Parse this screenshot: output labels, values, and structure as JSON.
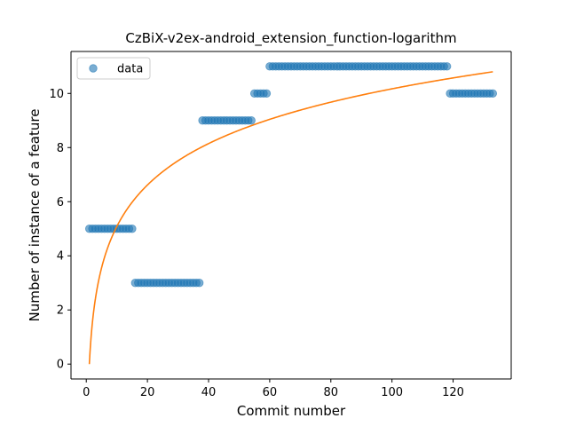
{
  "chart_data": {
    "type": "scatter",
    "title": "CzBiX-v2ex-android_extension_function-logarithm",
    "xlabel": "Commit number",
    "ylabel": "Number of instance of a feature",
    "xlim": [
      -5,
      139
    ],
    "ylim": [
      -0.55,
      11.55
    ],
    "xticks": [
      0,
      20,
      40,
      60,
      80,
      100,
      120
    ],
    "yticks": [
      0,
      2,
      4,
      6,
      8,
      10
    ],
    "grid": false,
    "legend_position": "top-left",
    "series": [
      {
        "name": "data",
        "kind": "points",
        "color": "#1f77b4",
        "segments": [
          {
            "x_from": 1,
            "x_to": 15,
            "y": 5
          },
          {
            "x_from": 16,
            "x_to": 37,
            "y": 3
          },
          {
            "x_from": 38,
            "x_to": 54,
            "y": 9
          },
          {
            "x_from": 55,
            "x_to": 59,
            "y": 10
          },
          {
            "x_from": 60,
            "x_to": 118,
            "y": 11
          },
          {
            "x_from": 119,
            "x_to": 133,
            "y": 10
          }
        ]
      },
      {
        "kind": "line",
        "color": "#ff7f0e",
        "function": "logarithmic",
        "x_from": 1,
        "x_to": 133,
        "y_at_start": 0,
        "y_at_end": 10.8
      }
    ]
  }
}
